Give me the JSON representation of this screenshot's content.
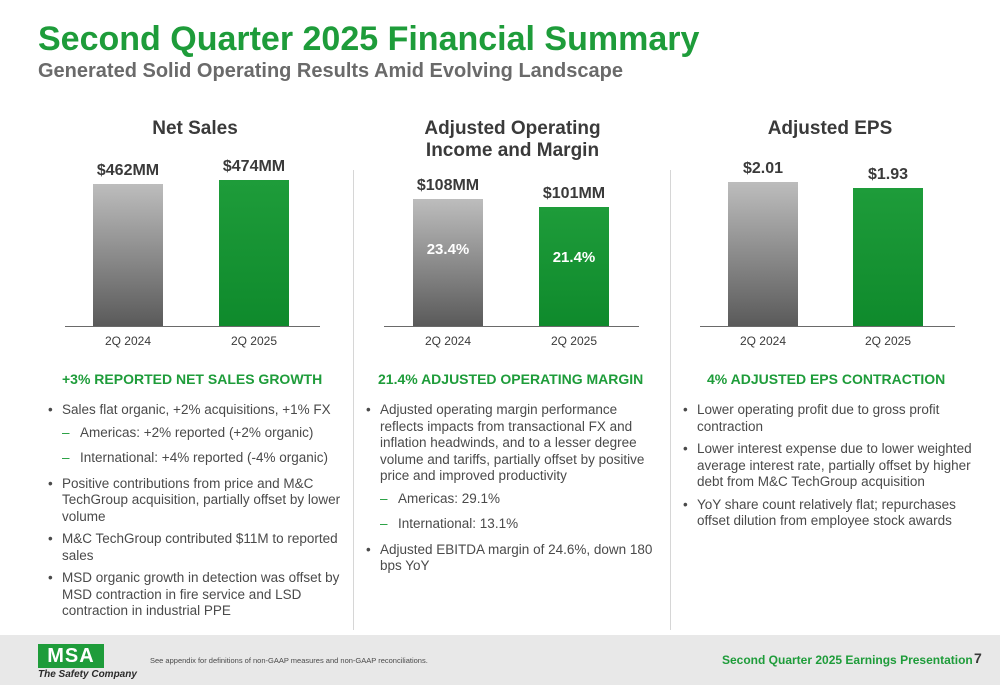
{
  "header": {
    "title": "Second Quarter 2025 Financial Summary",
    "subtitle": "Generated Solid Operating Results Amid Evolving Landscape"
  },
  "colors": {
    "brand_green": "#1e9c3a",
    "bar_grey": "#7a7a7a"
  },
  "chart_data": [
    {
      "type": "bar",
      "title": "Net Sales",
      "categories": [
        "2Q 2024",
        "2Q 2025"
      ],
      "values": [
        462,
        474
      ],
      "value_labels": [
        "$462MM",
        "$474MM"
      ],
      "units": "MM"
    },
    {
      "type": "bar",
      "title": "Adjusted Operating Income and Margin",
      "categories": [
        "2Q 2024",
        "2Q 2025"
      ],
      "values": [
        108,
        101
      ],
      "value_labels": [
        "$108MM",
        "$101MM"
      ],
      "margin_labels": [
        "23.4%",
        "21.4%"
      ],
      "margins": [
        23.4,
        21.4
      ],
      "units": "MM"
    },
    {
      "type": "bar",
      "title": "Adjusted EPS",
      "categories": [
        "2Q 2024",
        "2Q 2025"
      ],
      "values": [
        2.01,
        1.93
      ],
      "value_labels": [
        "$2.01",
        "$1.93"
      ]
    }
  ],
  "columns": {
    "net_sales": {
      "title": "Net Sales",
      "headline": "+3% REPORTED NET SALES GROWTH",
      "b1": "Sales flat organic, +2% acquisitions, +1% FX",
      "b1s1": "Americas: +2% reported (+2% organic)",
      "b1s2": "International: +4% reported (-4% organic)",
      "b2": "Positive contributions from price and M&C TechGroup acquisition, partially offset by lower volume",
      "b3": "M&C TechGroup contributed $11M to reported sales",
      "b4": "MSD organic growth in detection was offset by MSD contraction in fire service and LSD contraction in industrial PPE"
    },
    "op_income": {
      "title": "Adjusted Operating Income and Margin",
      "headline": "21.4% ADJUSTED OPERATING MARGIN",
      "b1": "Adjusted operating margin performance reflects impacts from transactional FX and inflation headwinds, and to a lesser degree volume and tariffs, partially offset by positive price and improved productivity",
      "b1s1": "Americas: 29.1%",
      "b1s2": "International: 13.1%",
      "b2": "Adjusted EBITDA margin of 24.6%, down 180 bps YoY"
    },
    "eps": {
      "title": "Adjusted EPS",
      "headline": "4% ADJUSTED EPS CONTRACTION",
      "b1": "Lower operating profit due to gross profit contraction",
      "b2": "Lower interest expense due to lower weighted average interest rate, partially offset by higher debt from M&C TechGroup acquisition",
      "b3": "YoY share count relatively flat; repurchases offset dilution from employee stock awards"
    }
  },
  "footer": {
    "logo": "MSA",
    "tagline": "The Safety Company",
    "footnote": "See appendix for definitions of non-GAAP measures and non-GAAP reconciliations.",
    "presentation": "Second Quarter 2025 Earnings Presentation",
    "page_number": "7"
  }
}
